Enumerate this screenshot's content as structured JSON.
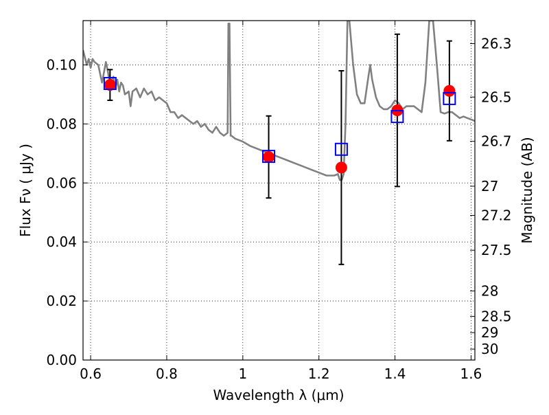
{
  "chart_data": {
    "type": "scatter",
    "title": "",
    "xlabel": "Wavelength  λ (μm)",
    "ylabel": "Flux  Fν  ( μJy )",
    "y2label": "Magnitude (AB)",
    "xlim": [
      0.58,
      1.61
    ],
    "ylim": [
      0.0,
      0.115
    ],
    "xticks": [
      0.6,
      0.8,
      1.0,
      1.2,
      1.4,
      1.6
    ],
    "xtick_labels": [
      "0.6",
      "0.8",
      "1",
      "1.2",
      "1.4",
      "1.6"
    ],
    "yticks": [
      0.0,
      0.02,
      0.04,
      0.06,
      0.08,
      0.1
    ],
    "ytick_labels": [
      "0.00",
      "0.02",
      "0.04",
      "0.06",
      "0.08",
      "0.10"
    ],
    "y2ticks": [
      {
        "label": "26.3",
        "flux": 0.1072
      },
      {
        "label": "26.5",
        "flux": 0.0891
      },
      {
        "label": "26.7",
        "flux": 0.0741
      },
      {
        "label": "27",
        "flux": 0.0589
      },
      {
        "label": "27.2",
        "flux": 0.049
      },
      {
        "label": "27.5",
        "flux": 0.0372
      },
      {
        "label": "28",
        "flux": 0.0234
      },
      {
        "label": "28.5",
        "flux": 0.0148
      },
      {
        "label": "29",
        "flux": 0.0093
      },
      {
        "label": "30",
        "flux": 0.0037
      }
    ],
    "grid": true,
    "colors": {
      "model": "#808080",
      "observed": "#ff0000",
      "model_photometry": "#0000ff",
      "errorbar": "#000000",
      "grid": "#000000"
    },
    "series": [
      {
        "type": "line",
        "x": [
          0.58,
          0.59,
          0.595,
          0.6,
          0.605,
          0.61,
          0.62,
          0.625,
          0.63,
          0.64,
          0.645,
          0.65,
          0.66,
          0.665,
          0.67,
          0.675,
          0.68,
          0.685,
          0.69,
          0.7,
          0.705,
          0.71,
          0.72,
          0.73,
          0.74,
          0.75,
          0.76,
          0.77,
          0.78,
          0.79,
          0.8,
          0.81,
          0.82,
          0.83,
          0.84,
          0.85,
          0.86,
          0.87,
          0.88,
          0.89,
          0.9,
          0.91,
          0.92,
          0.93,
          0.94,
          0.95,
          0.96,
          0.962,
          0.965,
          0.968,
          0.97,
          0.98,
          1.0,
          1.02,
          1.04,
          1.06,
          1.08,
          1.1,
          1.12,
          1.14,
          1.16,
          1.18,
          1.2,
          1.22,
          1.24,
          1.25,
          1.255,
          1.26,
          1.265,
          1.27,
          1.275,
          1.28,
          1.29,
          1.3,
          1.31,
          1.32,
          1.33,
          1.335,
          1.34,
          1.35,
          1.36,
          1.37,
          1.38,
          1.39,
          1.4,
          1.41,
          1.42,
          1.43,
          1.44,
          1.45,
          1.46,
          1.47,
          1.48,
          1.49,
          1.5,
          1.51,
          1.52,
          1.53,
          1.54,
          1.55,
          1.56,
          1.57,
          1.58,
          1.59,
          1.6,
          1.61
        ],
        "y": [
          0.105,
          0.1,
          0.102,
          0.099,
          0.102,
          0.101,
          0.1,
          0.097,
          0.094,
          0.101,
          0.098,
          0.094,
          0.096,
          0.092,
          0.095,
          0.091,
          0.094,
          0.093,
          0.09,
          0.091,
          0.086,
          0.091,
          0.092,
          0.089,
          0.092,
          0.09,
          0.091,
          0.088,
          0.089,
          0.088,
          0.087,
          0.084,
          0.084,
          0.082,
          0.083,
          0.082,
          0.081,
          0.08,
          0.081,
          0.079,
          0.08,
          0.078,
          0.077,
          0.079,
          0.077,
          0.076,
          0.077,
          0.114,
          0.114,
          0.076,
          0.076,
          0.075,
          0.074,
          0.0725,
          0.0715,
          0.0705,
          0.0695,
          0.0685,
          0.0675,
          0.0665,
          0.0655,
          0.0645,
          0.0635,
          0.0625,
          0.0625,
          0.063,
          0.061,
          0.061,
          0.063,
          0.08,
          0.115,
          0.115,
          0.1,
          0.09,
          0.087,
          0.087,
          0.096,
          0.1,
          0.095,
          0.089,
          0.086,
          0.085,
          0.085,
          0.086,
          0.088,
          0.087,
          0.085,
          0.086,
          0.086,
          0.086,
          0.085,
          0.084,
          0.094,
          0.115,
          0.115,
          0.1,
          0.084,
          0.0835,
          0.084,
          0.084,
          0.083,
          0.082,
          0.0825,
          0.082,
          0.0815,
          0.081
        ]
      },
      {
        "type": "scatter",
        "marker": "circle",
        "x": [
          0.651,
          1.068,
          1.259,
          1.406,
          1.543
        ],
        "y": [
          0.0932,
          0.0688,
          0.0652,
          0.0846,
          0.0912
        ],
        "yerr": [
          0.0052,
          0.0139,
          0.0328,
          0.0258,
          0.0169
        ]
      },
      {
        "type": "scatter",
        "marker": "square",
        "x": [
          0.651,
          1.068,
          1.259,
          1.406,
          1.543
        ],
        "y": [
          0.0937,
          0.069,
          0.0714,
          0.0825,
          0.0886
        ]
      }
    ]
  }
}
